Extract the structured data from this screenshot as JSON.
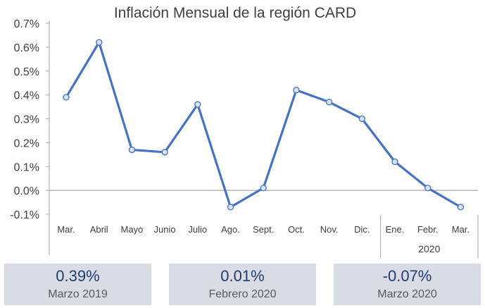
{
  "chart_data": {
    "type": "line",
    "title": "Inflación Mensual de la región CARD",
    "categories": [
      "Mar.",
      "Abril",
      "Mayo",
      "Junio",
      "Julio",
      "Ago.",
      "Sept.",
      "Oct.",
      "Nov.",
      "Dic.",
      "Ene.",
      "Febr.",
      "Mar."
    ],
    "group_label": "2020",
    "group_start_index": 10,
    "series": [
      {
        "values": [
          0.39,
          0.62,
          0.17,
          0.16,
          0.36,
          -0.07,
          0.01,
          0.42,
          0.37,
          0.3,
          0.12,
          0.01,
          -0.07
        ]
      }
    ],
    "yticks": [
      "0.7%",
      "0.6%",
      "0.5%",
      "0.4%",
      "0.3%",
      "0.2%",
      "0.1%",
      "0.0%",
      "-0.1%"
    ],
    "ylim": [
      -0.1,
      0.7
    ],
    "ylabel": "",
    "xlabel": "",
    "grid": false,
    "line_color": "#4472c4",
    "marker_fill": "#d9e3f5"
  },
  "cards": [
    {
      "value": "0.39%",
      "label": "Marzo 2019"
    },
    {
      "value": "0.01%",
      "label": "Febrero 2020"
    },
    {
      "value": "-0.07%",
      "label": "Marzo 2020"
    }
  ],
  "colors": {
    "card_bg": "#d9dde3",
    "card_value": "#1f3b73",
    "axis": "#a6a6a6"
  }
}
